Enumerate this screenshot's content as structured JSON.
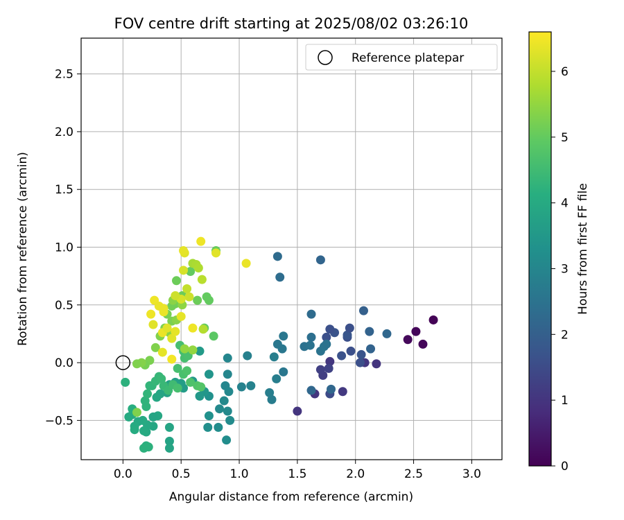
{
  "chart_data": {
    "type": "scatter",
    "title": "FOV centre drift starting at 2025/08/02 03:26:10",
    "xlabel": "Angular distance from reference (arcmin)",
    "ylabel": "Rotation from reference (arcmin)",
    "xlim": [
      -0.36,
      3.26
    ],
    "ylim": [
      -0.84,
      2.81
    ],
    "xticks": [
      "0.0",
      "0.5",
      "1.0",
      "1.5",
      "2.0",
      "2.5",
      "3.0"
    ],
    "xtick_values": [
      0,
      0.5,
      1,
      1.5,
      2,
      2.5,
      3
    ],
    "yticks": [
      "−0.5",
      "0.0",
      "0.5",
      "1.0",
      "1.5",
      "2.0",
      "2.5"
    ],
    "ytick_values": [
      -0.5,
      0,
      0.5,
      1,
      1.5,
      2,
      2.5
    ],
    "grid": true,
    "legend": {
      "placement": "top-right",
      "entries": [
        {
          "label": "Reference platepar",
          "marker": "open-circle"
        }
      ]
    },
    "reference_point": {
      "x": 0,
      "y": 0
    },
    "colorbar": {
      "label": "Hours from first FF file",
      "colormap": "viridis",
      "range": [
        0,
        6.6
      ],
      "ticks": [
        "0",
        "1",
        "2",
        "3",
        "4",
        "5",
        "6"
      ],
      "tick_values": [
        0,
        1,
        2,
        3,
        4,
        5,
        6
      ]
    },
    "points": [
      [
        2.67,
        0.37,
        0.05
      ],
      [
        2.58,
        0.16,
        0.1
      ],
      [
        2.52,
        0.27,
        0.1
      ],
      [
        2.45,
        0.2,
        0.15
      ],
      [
        2.18,
        -0.01,
        1.0
      ],
      [
        2.08,
        0.0,
        1.05
      ],
      [
        1.89,
        -0.25,
        1.1
      ],
      [
        1.78,
        0.01,
        1.05
      ],
      [
        1.65,
        -0.27,
        1.0
      ],
      [
        1.5,
        -0.42,
        1.0
      ],
      [
        1.72,
        -0.11,
        1.2
      ],
      [
        1.7,
        -0.06,
        1.25
      ],
      [
        1.77,
        -0.05,
        1.3
      ],
      [
        1.78,
        -0.27,
        1.5
      ],
      [
        1.93,
        0.22,
        1.6
      ],
      [
        1.88,
        0.06,
        1.65
      ],
      [
        1.82,
        0.26,
        1.7
      ],
      [
        1.78,
        0.29,
        1.6
      ],
      [
        1.75,
        0.22,
        1.6
      ],
      [
        1.93,
        0.24,
        1.75
      ],
      [
        1.95,
        0.3,
        1.6
      ],
      [
        1.96,
        0.1,
        1.6
      ],
      [
        2.04,
        0.0,
        1.6
      ],
      [
        2.05,
        0.07,
        1.7
      ],
      [
        2.07,
        0.45,
        2.0
      ],
      [
        2.12,
        0.27,
        2.1
      ],
      [
        2.13,
        0.12,
        2.1
      ],
      [
        2.27,
        0.25,
        2.2
      ],
      [
        1.79,
        -0.23,
        2.2
      ],
      [
        1.62,
        -0.24,
        2.2
      ],
      [
        1.7,
        0.89,
        2.15
      ],
      [
        1.33,
        0.92,
        2.3
      ],
      [
        1.35,
        0.74,
        2.35
      ],
      [
        1.62,
        0.42,
        2.3
      ],
      [
        1.62,
        0.22,
        2.4
      ],
      [
        1.56,
        0.14,
        2.45
      ],
      [
        1.61,
        0.15,
        2.5
      ],
      [
        1.7,
        0.1,
        2.5
      ],
      [
        1.73,
        0.14,
        2.55
      ],
      [
        1.75,
        0.16,
        2.5
      ],
      [
        1.38,
        0.23,
        2.6
      ],
      [
        1.33,
        0.16,
        2.6
      ],
      [
        1.37,
        0.12,
        2.6
      ],
      [
        1.38,
        -0.08,
        2.6
      ],
      [
        1.32,
        -0.14,
        2.8
      ],
      [
        1.3,
        0.05,
        2.8
      ],
      [
        1.28,
        -0.32,
        2.75
      ],
      [
        1.26,
        -0.26,
        2.8
      ],
      [
        1.1,
        -0.2,
        2.9
      ],
      [
        1.07,
        0.06,
        2.85
      ],
      [
        1.02,
        -0.21,
        2.9
      ],
      [
        0.9,
        0.04,
        3.0
      ],
      [
        0.9,
        -0.1,
        3.0
      ],
      [
        0.88,
        -0.2,
        3.0
      ],
      [
        0.91,
        -0.25,
        3.05
      ],
      [
        0.87,
        -0.33,
        3.1
      ],
      [
        0.83,
        -0.4,
        3.1
      ],
      [
        0.9,
        -0.42,
        3.1
      ],
      [
        0.92,
        -0.5,
        3.15
      ],
      [
        0.89,
        -0.67,
        3.2
      ],
      [
        0.82,
        -0.56,
        3.2
      ],
      [
        0.73,
        -0.56,
        3.25
      ],
      [
        0.74,
        -0.46,
        3.3
      ],
      [
        0.74,
        -0.29,
        3.3
      ],
      [
        0.74,
        -0.1,
        3.4
      ],
      [
        0.7,
        -0.25,
        3.45
      ],
      [
        0.66,
        -0.29,
        3.5
      ],
      [
        0.66,
        0.1,
        3.55
      ],
      [
        0.6,
        -0.16,
        3.5
      ],
      [
        0.52,
        -0.22,
        3.6
      ],
      [
        0.5,
        -0.18,
        3.65
      ],
      [
        0.45,
        -0.17,
        3.7
      ],
      [
        0.4,
        -0.19,
        3.7
      ],
      [
        0.38,
        -0.26,
        3.75
      ],
      [
        0.4,
        -0.68,
        3.8
      ],
      [
        0.4,
        -0.74,
        3.85
      ],
      [
        0.4,
        -0.56,
        3.85
      ],
      [
        0.32,
        -0.27,
        3.85
      ],
      [
        0.29,
        -0.3,
        3.9
      ],
      [
        0.3,
        -0.46,
        3.9
      ],
      [
        0.26,
        -0.47,
        3.85
      ],
      [
        0.26,
        -0.55,
        3.9
      ],
      [
        0.21,
        -0.54,
        3.95
      ],
      [
        0.2,
        -0.6,
        3.95
      ],
      [
        0.18,
        -0.59,
        4.0
      ],
      [
        0.17,
        -0.5,
        4.0
      ],
      [
        0.13,
        -0.51,
        3.95
      ],
      [
        0.1,
        -0.55,
        4.0
      ],
      [
        0.1,
        -0.58,
        4.05
      ],
      [
        0.08,
        -0.4,
        4.1
      ],
      [
        0.08,
        -0.45,
        4.1
      ],
      [
        0.05,
        -0.47,
        4.0
      ],
      [
        0.02,
        -0.17,
        4.2
      ],
      [
        0.2,
        -0.72,
        4.15
      ],
      [
        0.18,
        -0.74,
        4.2
      ],
      [
        0.22,
        -0.73,
        4.2
      ],
      [
        0.2,
        -0.38,
        4.25
      ],
      [
        0.19,
        -0.33,
        4.25
      ],
      [
        0.21,
        -0.27,
        4.3
      ],
      [
        0.23,
        -0.2,
        4.3
      ],
      [
        0.25,
        -0.2,
        4.3
      ],
      [
        0.28,
        -0.16,
        4.35
      ],
      [
        0.31,
        -0.12,
        4.35
      ],
      [
        0.33,
        -0.14,
        4.4
      ],
      [
        0.35,
        -0.2,
        4.4
      ],
      [
        0.39,
        -0.24,
        4.45
      ],
      [
        0.43,
        -0.19,
        4.5
      ],
      [
        0.47,
        -0.22,
        4.6
      ],
      [
        0.47,
        -0.05,
        4.6
      ],
      [
        0.49,
        0.15,
        4.6
      ],
      [
        0.52,
        0.1,
        4.55
      ],
      [
        0.53,
        0.04,
        4.6
      ],
      [
        0.52,
        -0.1,
        4.65
      ],
      [
        0.55,
        -0.07,
        4.7
      ],
      [
        0.56,
        0.06,
        4.65
      ],
      [
        0.58,
        -0.17,
        4.7
      ],
      [
        0.64,
        -0.2,
        4.75
      ],
      [
        0.67,
        -0.21,
        4.8
      ],
      [
        0.78,
        0.23,
        4.9
      ],
      [
        0.7,
        0.3,
        5.0
      ],
      [
        0.74,
        0.54,
        5.0
      ],
      [
        0.72,
        0.57,
        5.0
      ],
      [
        0.64,
        0.54,
        5.1
      ],
      [
        0.58,
        0.79,
        5.0
      ],
      [
        0.8,
        0.97,
        5.05
      ],
      [
        0.51,
        0.58,
        5.1
      ],
      [
        0.45,
        0.51,
        5.15
      ],
      [
        0.42,
        0.49,
        5.15
      ],
      [
        0.46,
        0.71,
        5.1
      ],
      [
        0.38,
        0.42,
        5.2
      ],
      [
        0.42,
        0.36,
        5.25
      ],
      [
        0.36,
        0.3,
        5.25
      ],
      [
        0.32,
        0.23,
        5.3
      ],
      [
        0.28,
        0.13,
        5.3
      ],
      [
        0.23,
        0.02,
        5.25
      ],
      [
        0.19,
        -0.02,
        5.2
      ],
      [
        0.16,
        0.0,
        5.35
      ],
      [
        0.12,
        -0.01,
        5.3
      ],
      [
        0.12,
        -0.43,
        5.3
      ],
      [
        0.4,
        0.26,
        5.4
      ],
      [
        0.46,
        0.37,
        5.4
      ],
      [
        0.43,
        0.54,
        5.4
      ],
      [
        0.51,
        0.5,
        5.45
      ],
      [
        0.53,
        0.12,
        5.5
      ],
      [
        0.6,
        0.11,
        5.5
      ],
      [
        0.6,
        0.86,
        5.7
      ],
      [
        0.63,
        0.85,
        5.75
      ],
      [
        0.65,
        0.82,
        5.8
      ],
      [
        0.68,
        0.72,
        5.9
      ],
      [
        0.69,
        0.29,
        5.85
      ],
      [
        0.55,
        0.64,
        6.0
      ],
      [
        0.57,
        0.57,
        6.1
      ],
      [
        0.5,
        0.55,
        6.2
      ],
      [
        0.45,
        0.58,
        6.1
      ],
      [
        0.52,
        0.8,
        6.2
      ],
      [
        0.53,
        0.95,
        6.3
      ],
      [
        0.52,
        0.97,
        6.35
      ],
      [
        0.8,
        0.95,
        6.3
      ],
      [
        1.06,
        0.86,
        6.4
      ],
      [
        0.67,
        1.05,
        6.45
      ],
      [
        0.27,
        0.54,
        6.45
      ],
      [
        0.31,
        0.49,
        6.4
      ],
      [
        0.35,
        0.47,
        6.4
      ],
      [
        0.24,
        0.42,
        6.45
      ],
      [
        0.26,
        0.33,
        6.3
      ],
      [
        0.34,
        0.26,
        6.4
      ],
      [
        0.38,
        0.3,
        6.3
      ],
      [
        0.42,
        0.21,
        6.3
      ],
      [
        0.45,
        0.27,
        6.35
      ],
      [
        0.34,
        0.09,
        6.35
      ],
      [
        0.42,
        0.03,
        6.5
      ],
      [
        0.5,
        0.4,
        6.35
      ],
      [
        0.6,
        0.3,
        6.45
      ],
      [
        0.35,
        0.44,
        6.4
      ]
    ]
  }
}
